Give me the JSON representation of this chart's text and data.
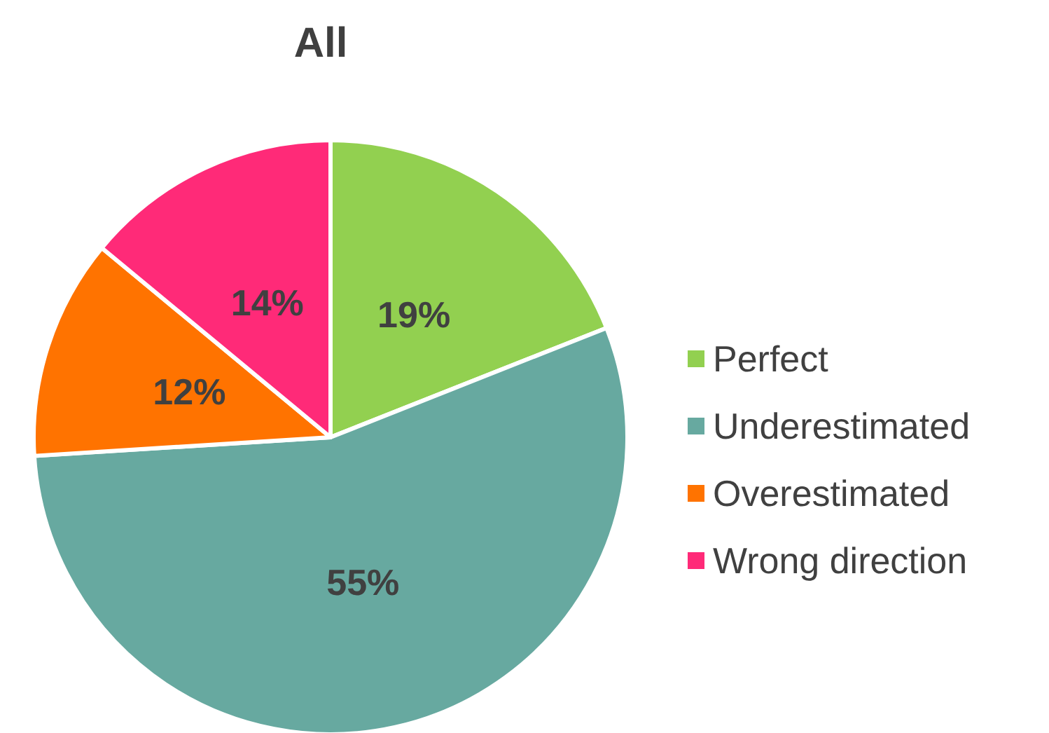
{
  "chart_data": {
    "type": "pie",
    "title": "All",
    "categories": [
      "Perfect",
      "Underestimated",
      "Overestimated",
      "Wrong direction"
    ],
    "values": [
      19,
      55,
      12,
      14
    ],
    "colors": [
      "#92d050",
      "#67a9a0",
      "#ff7300",
      "#ff2a78"
    ],
    "value_labels": [
      "19%",
      "55%",
      "12%",
      "14%"
    ],
    "legend": "right"
  }
}
